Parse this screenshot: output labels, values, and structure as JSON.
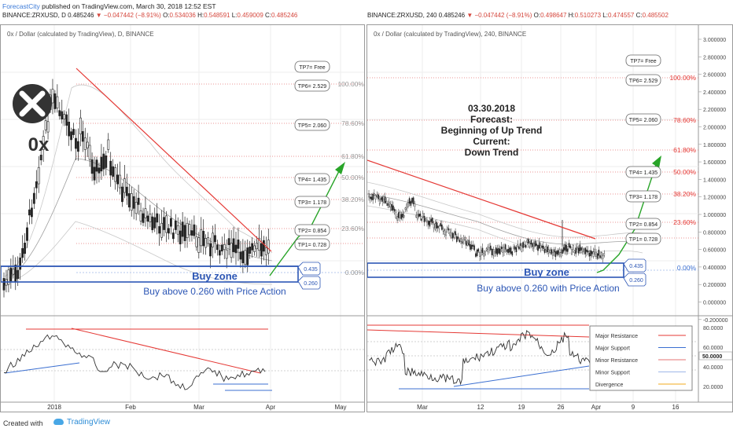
{
  "header": {
    "author": "ForecastCity",
    "published_text": "published on TradingView.com, March 30, 2018 12:52 EST"
  },
  "left": {
    "symbol": "BINANCE:ZRXUSD, D",
    "last": "0.485246",
    "change": "▼ −0.047442 (−8.91%)",
    "o": "0.534036",
    "h": "0.548591",
    "l": "0.459009",
    "c": "0.485246",
    "subtitle": "0x / Dollar (calculated by TradingView), D, BINANCE",
    "logo_text": "0x",
    "x_labels": [
      "2018",
      "Feb",
      "Mar",
      "Apr",
      "May"
    ],
    "fib_labels": [
      "100.00%",
      "78.60%",
      "61.80%",
      "50.00%",
      "38.20%",
      "23.60%",
      "0.00%"
    ],
    "tp_boxes": [
      "TP7= Free",
      "TP6= 2.529",
      "TP5= 2.060",
      "TP4= 1.435",
      "TP3= 1.178",
      "TP2= 0.854",
      "TP1= 0.728"
    ],
    "zone_top_label": "0.435",
    "zone_bottom_label": "0.260",
    "buy_zone_text": "Buy zone",
    "buy_above_text": "Buy above 0.260 with Price Action"
  },
  "right": {
    "symbol": "BINANCE:ZRXUSD, 240",
    "last": "0.485246",
    "change": "▼ −0.047442 (−8.91%)",
    "o": "0.498647",
    "h": "0.510273",
    "l": "0.474557",
    "c": "0.485502",
    "subtitle": "0x / Dollar (calculated by TradingView), 240, BINANCE",
    "forecast_lines": [
      "03.30.2018",
      "Forecast:",
      "Beginning of Up Trend",
      "Current:",
      "Down Trend"
    ],
    "x_labels": [
      "Mar",
      "12",
      "19",
      "26",
      "Apr",
      "9",
      "16"
    ],
    "fib_labels": [
      "100.00%",
      "78.60%",
      "61.80%",
      "50.00%",
      "38.20%",
      "23.60%",
      "0.00%"
    ],
    "tp_boxes": [
      "TP7= Free",
      "TP6= 2.529",
      "TP5= 2.060",
      "TP4= 1.435",
      "TP3= 1.178",
      "TP2= 0.854",
      "TP1= 0.728"
    ],
    "zone_top_label": "0.435",
    "zone_bottom_label": "0.260",
    "buy_zone_text": "Buy zone",
    "buy_above_text": "Buy above 0.260 with Price Action",
    "price_axis": [
      "3.000000",
      "2.800000",
      "2.600000",
      "2.400000",
      "2.200000",
      "2.000000",
      "1.800000",
      "1.600000",
      "1.400000",
      "1.200000",
      "1.000000",
      "0.800000",
      "0.600000",
      "0.400000",
      "0.200000",
      "0.000000",
      "-0.200000"
    ],
    "rsi_axis": [
      "80.0000",
      "60.0000",
      "40.0000",
      "20.0000"
    ],
    "rsi_last": "50.0000",
    "legend": [
      {
        "label": "Major Resistance",
        "color": "#e53935"
      },
      {
        "label": "Major Support",
        "color": "#3b6fd1"
      },
      {
        "label": "Minor Resistance",
        "color": "#e57373"
      },
      {
        "label": "Minor Support",
        "color": "#9fb6e8"
      },
      {
        "label": "Divergence",
        "color": "#f2a81d"
      }
    ]
  },
  "footer": {
    "created_with": "Created with",
    "tradingview": "TradingView"
  },
  "chart_data": [
    {
      "type": "candlestick",
      "title": "0x / Dollar (calculated by TradingView), D, BINANCE",
      "x_axis": [
        "2018",
        "Feb",
        "Mar",
        "Apr",
        "May"
      ],
      "annotations": {
        "fibonacci": {
          "100.00%": 2.529,
          "78.60%": 2.06,
          "61.80%": 1.73,
          "50.00%": 1.435,
          "38.20%": 1.178,
          "23.60%": 0.854,
          "0.00%": 0.435
        },
        "targets": {
          "TP1": 0.728,
          "TP2": 0.854,
          "TP3": 1.178,
          "TP4": 1.435,
          "TP5": 2.06,
          "TP6": 2.529,
          "TP7": "Free"
        },
        "buy_zone": [
          0.26,
          0.435
        ],
        "close": 0.485246
      }
    },
    {
      "type": "candlestick",
      "title": "0x / Dollar (calculated by TradingView), 240, BINANCE",
      "x_axis": [
        "Mar",
        "12",
        "19",
        "26",
        "Apr",
        "9",
        "16"
      ],
      "y_axis": {
        "min": -0.2,
        "max": 3.0,
        "step": 0.2
      },
      "annotations": {
        "fibonacci": {
          "100.00%": 2.529,
          "78.60%": 2.06,
          "61.80%": 1.73,
          "50.00%": 1.435,
          "38.20%": 1.178,
          "23.60%": 0.854,
          "0.00%": 0.435
        },
        "targets": {
          "TP1": 0.728,
          "TP2": 0.854,
          "TP3": 1.178,
          "TP4": 1.435,
          "TP5": 2.06,
          "TP6": 2.529,
          "TP7": "Free"
        },
        "buy_zone": [
          0.26,
          0.435
        ],
        "close": 0.485502
      },
      "oscillator": {
        "axis": [
          80,
          60,
          40,
          20
        ],
        "last": 50
      }
    }
  ]
}
